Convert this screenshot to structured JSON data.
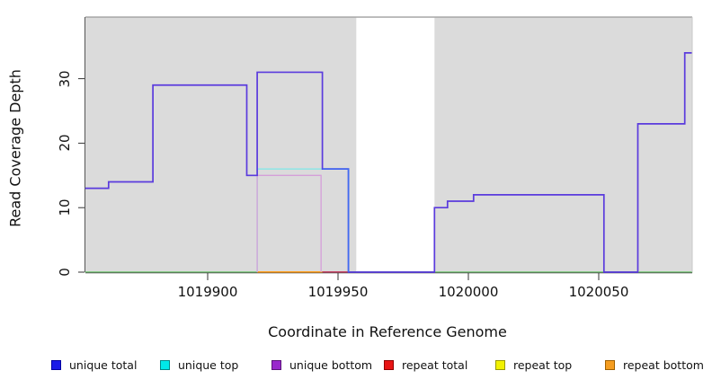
{
  "figure": {
    "bg": "#ffffff",
    "panel_bg": "#dbdbdb",
    "panel_border_top": "#999999",
    "panel_border_right": "#c9c9c9",
    "axis_color": "#444444"
  },
  "axes": {
    "xlabel": "Coordinate in Reference Genome",
    "ylabel": "Read Coverage Depth"
  },
  "legend": {
    "items": [
      {
        "label": "unique total",
        "fill": "#1a1ae8",
        "border": "#0000a0"
      },
      {
        "label": "unique top",
        "fill": "#00e8e8",
        "border": "#008888"
      },
      {
        "label": "unique bottom",
        "fill": "#9928cc",
        "border": "#5a1478"
      },
      {
        "label": "repeat total",
        "fill": "#e81414",
        "border": "#900000"
      },
      {
        "label": "repeat top",
        "fill": "#f2f200",
        "border": "#999900"
      },
      {
        "label": "repeat bottom",
        "fill": "#f59d20",
        "border": "#a06000"
      }
    ]
  },
  "chart_data": {
    "type": "line",
    "subtype": "step-coverage",
    "title": "",
    "xlabel": "Coordinate in Reference Genome",
    "ylabel": "Read Coverage Depth",
    "xlim": [
      1019853,
      1020086
    ],
    "ylim": [
      0,
      39.5
    ],
    "x_ticks": [
      1019900,
      1019950,
      1020000,
      1020050
    ],
    "y_ticks": [
      0,
      10,
      20,
      30
    ],
    "grid": false,
    "legend_position": "bottom",
    "gap_region": {
      "x0": 1019957,
      "x1": 1019987,
      "color": "#ffffff"
    },
    "main_line_color": "#5a3bdd",
    "series": [
      {
        "name": "unique total",
        "legend_color": "#0000ee",
        "points": [
          [
            1019853,
            13
          ],
          [
            1019862,
            14
          ],
          [
            1019879,
            29
          ],
          [
            1019915,
            15
          ],
          [
            1019919,
            31
          ],
          [
            1019944,
            16
          ],
          [
            1019954,
            0
          ],
          [
            1019987,
            10
          ],
          [
            1019992,
            11
          ],
          [
            1020002,
            12
          ],
          [
            1020052,
            0
          ],
          [
            1020065,
            23
          ],
          [
            1020083,
            34
          ]
        ]
      },
      {
        "name": "unique top",
        "legend_color": "#00eeee",
        "points": [
          [
            1019853,
            0
          ],
          [
            1019919,
            16
          ],
          [
            1019954,
            0
          ]
        ]
      },
      {
        "name": "unique bottom",
        "legend_color": "#9928cc",
        "points": [
          [
            1019853,
            13
          ],
          [
            1019862,
            14
          ],
          [
            1019879,
            29
          ],
          [
            1019915,
            15
          ],
          [
            1019919,
            15
          ],
          [
            1019944,
            0
          ],
          [
            1019987,
            10
          ],
          [
            1019992,
            11
          ],
          [
            1020002,
            12
          ],
          [
            1020052,
            0
          ],
          [
            1020065,
            23
          ],
          [
            1020083,
            34
          ]
        ]
      },
      {
        "name": "repeat total",
        "legend_color": "#ee0000",
        "points": [
          [
            1019853,
            0
          ]
        ]
      },
      {
        "name": "repeat top",
        "legend_color": "#eeee00",
        "points": [
          [
            1019853,
            0
          ]
        ]
      },
      {
        "name": "repeat bottom",
        "legend_color": "#ee9900",
        "points": [
          [
            1019853,
            0
          ]
        ]
      }
    ],
    "render_layers": [
      {
        "kind": "hline",
        "name": "baseline-green",
        "y": 0,
        "x0": 1019853,
        "x1": 1020086,
        "color": "#7ec97e",
        "w": 1.3
      },
      {
        "kind": "hline",
        "name": "baseline-orange",
        "y": 0,
        "x0": 1019919,
        "x1": 1019944,
        "color": "#ffa020",
        "w": 1.6
      },
      {
        "kind": "hline",
        "name": "baseline-crimson",
        "y": 0,
        "x0": 1019944,
        "x1": 1019954,
        "color": "#c44a6a",
        "w": 1.6
      },
      {
        "kind": "path",
        "name": "unique-top-line",
        "color": "#7de8e8",
        "w": 1.3,
        "pts": [
          [
            1019919,
            0
          ],
          [
            1019919,
            16
          ],
          [
            1019954,
            16
          ]
        ]
      },
      {
        "kind": "path",
        "name": "unique-bottom-line",
        "color": "#d59fd9",
        "w": 1.3,
        "pts": [
          [
            1019919,
            0
          ],
          [
            1019919,
            15
          ],
          [
            1019943.5,
            15
          ],
          [
            1019943.5,
            0
          ]
        ]
      },
      {
        "kind": "main",
        "name": "unique-total-line"
      },
      {
        "kind": "path",
        "name": "unique-total-blue-segment",
        "color": "#3f6cf2",
        "w": 1.6,
        "pts": [
          [
            1019944,
            16
          ],
          [
            1019954,
            16
          ],
          [
            1019954,
            0
          ]
        ]
      }
    ]
  }
}
